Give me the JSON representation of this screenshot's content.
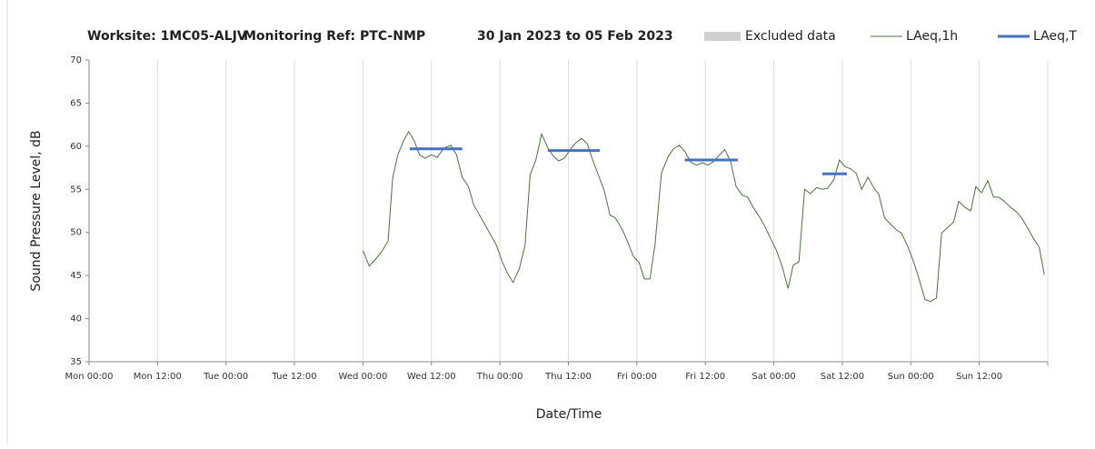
{
  "chart_data": {
    "type": "line",
    "header": [
      "Worksite: 1MC05-ALJV",
      "Monitoring Ref: PTC-NMP",
      "30 Jan 2023 to 05 Feb 2023"
    ],
    "xlabel": "Date/Time",
    "ylabel": "Sound Pressure Level, dB",
    "xlim": [
      0,
      168
    ],
    "ylim": [
      35,
      70
    ],
    "yticks": [
      35,
      40,
      45,
      50,
      55,
      60,
      65,
      70
    ],
    "xticks": [
      {
        "value": 0,
        "label": "Mon 00:00"
      },
      {
        "value": 12,
        "label": "Mon 12:00"
      },
      {
        "value": 24,
        "label": "Tue 00:00"
      },
      {
        "value": 36,
        "label": "Tue 12:00"
      },
      {
        "value": 48,
        "label": "Wed 00:00"
      },
      {
        "value": 60,
        "label": "Wed 12:00"
      },
      {
        "value": 72,
        "label": "Thu 00:00"
      },
      {
        "value": 84,
        "label": "Thu 12:00"
      },
      {
        "value": 96,
        "label": "Fri 00:00"
      },
      {
        "value": 108,
        "label": "Fri 12:00"
      },
      {
        "value": 120,
        "label": "Sat 00:00"
      },
      {
        "value": 132,
        "label": "Sat 12:00"
      },
      {
        "value": 144,
        "label": "Sun 00:00"
      },
      {
        "value": 156,
        "label": "Sun 12:00"
      },
      {
        "value": 168,
        "label": ""
      }
    ],
    "grid": true,
    "series": [
      {
        "name": "Excluded data",
        "color": "#d0d0d0",
        "kind": "area"
      },
      {
        "name": "LAeq,1h",
        "color": "#4f7040",
        "width": 1,
        "x": [
          48,
          49.1,
          50.2,
          51.3,
          52.4,
          53.2,
          54.1,
          55.1,
          56,
          57,
          57.9,
          58.9,
          60,
          61,
          62.2,
          63.4,
          64.4,
          65.4,
          66.5,
          67.4,
          68.7,
          70.3,
          71.4,
          72.4,
          73.3,
          74.3,
          75.4,
          76.4,
          77.3,
          78.3,
          79.3,
          80.4,
          81.3,
          82.3,
          83.3,
          84.2,
          85.3,
          86.3,
          87.3,
          88.2,
          89.4,
          90.3,
          91.3,
          92.2,
          93.4,
          94.4,
          95.4,
          96.4,
          97.3,
          98.3,
          99.2,
          100.3,
          101.5,
          102.4,
          103.4,
          104.4,
          105.5,
          106.5,
          107.5,
          108.4,
          109.4,
          110.5,
          111.4,
          112.4,
          113.4,
          114.5,
          115.4,
          116.4,
          117.4,
          118.5,
          119.5,
          120.4,
          121.4,
          122.5,
          123.4,
          124.4,
          125.4,
          126.4,
          127.5,
          128.5,
          129.4,
          130.5,
          131.5,
          132.5,
          133.4,
          134.4,
          135.4,
          136.5,
          137.5,
          138.4,
          139.4,
          140.5,
          141.5,
          142.4,
          143.5,
          144.5,
          145.4,
          146.5,
          147.5,
          148.5,
          149.4,
          150.5,
          151.5,
          152.4,
          153.5,
          154.5,
          155.4,
          156.4,
          157.5,
          158.5,
          159.4,
          160.4,
          161.5,
          162.5,
          163.4,
          164.4,
          165.5,
          166.5,
          167.4
        ],
        "values": [
          47.9,
          46.1,
          46.9,
          47.8,
          49.0,
          56.3,
          59.0,
          60.6,
          61.7,
          60.6,
          59.0,
          58.6,
          59.0,
          58.7,
          59.8,
          60.1,
          59.0,
          56.4,
          55.3,
          53.2,
          51.7,
          49.8,
          48.5,
          46.6,
          45.3,
          44.2,
          45.8,
          48.5,
          56.7,
          58.4,
          61.4,
          59.8,
          58.9,
          58.3,
          58.6,
          59.5,
          60.4,
          60.9,
          60.3,
          58.5,
          56.4,
          54.8,
          52.0,
          51.7,
          50.4,
          48.9,
          47.2,
          46.5,
          44.6,
          44.6,
          48.7,
          56.9,
          58.8,
          59.7,
          60.1,
          59.4,
          58.1,
          57.8,
          58.1,
          57.8,
          58.2,
          59.0,
          59.6,
          58.3,
          55.3,
          54.3,
          54.1,
          52.9,
          51.9,
          50.6,
          49.2,
          48.0,
          46.2,
          43.5,
          46.2,
          46.6,
          55.0,
          54.5,
          55.2,
          55.0,
          55.1,
          56.1,
          58.4,
          57.6,
          57.4,
          56.9,
          55.0,
          56.4,
          55.2,
          54.4,
          51.7,
          50.9,
          50.3,
          49.9,
          48.3,
          46.6,
          44.7,
          42.2,
          42.0,
          42.4,
          49.9,
          50.6,
          51.2,
          53.6,
          52.9,
          52.5,
          55.3,
          54.6,
          56.0,
          54.1,
          54.1,
          53.6,
          52.9,
          52.4,
          51.7,
          50.6,
          49.3,
          48.3,
          45.1
        ]
      },
      {
        "name": "LAeq,T",
        "color": "#4472c4",
        "width": 3,
        "x": [
          56.2,
          65.4,
          null,
          80.4,
          89.5,
          null,
          104.4,
          113.7,
          null,
          128.5,
          132.8
        ],
        "values": [
          59.7,
          59.7,
          null,
          59.5,
          59.5,
          null,
          58.4,
          58.4,
          null,
          56.8,
          56.8
        ]
      }
    ]
  }
}
